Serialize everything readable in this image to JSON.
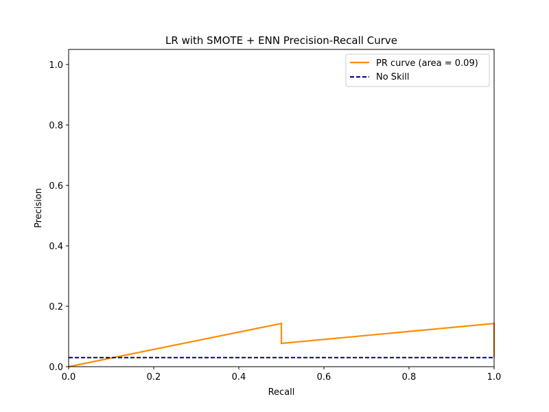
{
  "chart_data": {
    "type": "line",
    "title": "LR with SMOTE + ENN Precision-Recall Curve",
    "xlabel": "Recall",
    "ylabel": "Precision",
    "xlim": [
      0.0,
      1.0
    ],
    "ylim": [
      0.0,
      1.05
    ],
    "xticks": [
      0.0,
      0.2,
      0.4,
      0.6,
      0.8,
      1.0
    ],
    "xtick_labels": [
      "0.0",
      "0.2",
      "0.4",
      "0.6",
      "0.8",
      "1.0"
    ],
    "yticks": [
      0.0,
      0.2,
      0.4,
      0.6,
      0.8,
      1.0
    ],
    "ytick_labels": [
      "0.0",
      "0.2",
      "0.4",
      "0.6",
      "0.8",
      "1.0"
    ],
    "grid": false,
    "legend_position": "top-right",
    "series": [
      {
        "name": "PR curve (area = 0.09)",
        "color": "#ff8c00",
        "style": "solid",
        "x": [
          0.0,
          0.5,
          0.5,
          1.0,
          1.0
        ],
        "y": [
          0.0,
          0.143,
          0.077,
          0.143,
          0.03
        ]
      },
      {
        "name": "No Skill",
        "color": "#000080",
        "style": "dashed",
        "x": [
          0.0,
          1.0
        ],
        "y": [
          0.03,
          0.03
        ]
      }
    ]
  }
}
